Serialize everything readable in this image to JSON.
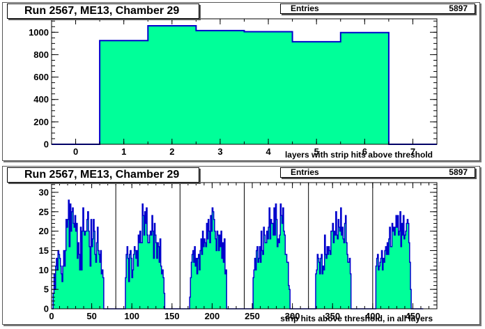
{
  "charts": [
    {
      "title": "Run 2567, ME13, Chamber 29",
      "stats": {
        "label": "Entries",
        "value": "5897"
      },
      "xlabel": "layers with strip hits above threshold"
    },
    {
      "title": "Run 2567, ME13, Chamber 29",
      "stats": {
        "label": "Entries",
        "value": "5897"
      },
      "xlabel": "strip hits above threshold, in all layers"
    }
  ],
  "colors": {
    "fill": "#00ff99",
    "line": "#0000cc",
    "frame": "#000000"
  },
  "chart_data": [
    {
      "type": "bar",
      "title": "Run 2567, ME13, Chamber 29",
      "xlabel": "layers with strip hits above threshold",
      "ylabel": "",
      "xlim": [
        -0.5,
        7.5
      ],
      "ylim": [
        0,
        1120
      ],
      "xticks": [
        0,
        1,
        2,
        3,
        4,
        5,
        6,
        7
      ],
      "yticks": [
        0,
        200,
        400,
        600,
        800,
        1000
      ],
      "categories": [
        0,
        1,
        2,
        3,
        4,
        5,
        6,
        7
      ],
      "values": [
        0,
        925,
        1058,
        1015,
        1005,
        915,
        997,
        0
      ],
      "entries": 5897
    },
    {
      "type": "bar",
      "title": "Run 2567, ME13, Chamber 29",
      "xlabel": "strip hits above threshold, in all layers",
      "ylabel": "",
      "xlim": [
        0,
        480
      ],
      "ylim": [
        0,
        32.5
      ],
      "xticks": [
        0,
        50,
        100,
        150,
        200,
        250,
        300,
        350,
        400,
        450
      ],
      "yticks": [
        0,
        5,
        10,
        15,
        20,
        25,
        30
      ],
      "layer_boundaries": [
        80,
        160,
        240,
        320,
        400
      ],
      "bin_width": 1,
      "values": [
        0,
        0,
        4,
        9,
        5,
        11,
        13,
        10,
        15,
        14,
        13,
        11,
        9,
        7,
        11,
        15,
        11,
        15,
        23,
        21,
        23,
        28,
        16,
        27,
        20,
        25,
        26,
        22,
        21,
        24,
        20,
        22,
        13,
        17,
        14,
        10,
        21,
        10,
        20,
        26,
        20,
        19,
        20,
        20,
        23,
        25,
        20,
        16,
        11,
        23,
        16,
        18,
        23,
        20,
        14,
        12,
        17,
        21,
        15,
        14,
        12,
        15,
        9,
        10,
        8,
        0,
        0,
        0,
        0,
        0,
        0,
        0,
        0,
        0,
        0,
        0,
        0,
        0,
        0,
        0,
        0,
        0,
        0,
        0,
        0,
        0,
        0,
        0,
        0,
        0,
        0,
        0,
        8,
        14,
        16,
        13,
        7,
        14,
        15,
        13,
        8,
        10,
        14,
        16,
        15,
        13,
        15,
        11,
        19,
        17,
        20,
        17,
        17,
        27,
        24,
        19,
        25,
        22,
        26,
        19,
        17,
        17,
        19,
        20,
        19,
        24,
        20,
        13,
        22,
        19,
        17,
        13,
        17,
        16,
        12,
        18,
        11,
        9,
        10,
        8,
        4,
        0,
        0,
        0,
        0,
        0,
        0,
        0,
        0,
        0,
        0,
        0,
        0,
        0,
        0,
        0,
        0,
        0,
        0,
        0,
        0,
        0,
        0,
        0,
        0,
        0,
        0,
        0,
        0,
        0,
        0,
        0,
        3,
        8,
        12,
        14,
        15,
        12,
        16,
        11,
        13,
        9,
        13,
        14,
        10,
        15,
        18,
        14,
        20,
        16,
        18,
        17,
        16,
        22,
        18,
        23,
        20,
        17,
        24,
        20,
        26,
        25,
        23,
        20,
        18,
        15,
        20,
        19,
        15,
        19,
        16,
        20,
        13,
        17,
        12,
        18,
        9,
        10,
        0,
        0,
        0,
        0,
        0,
        0,
        0,
        0,
        0,
        0,
        0,
        0,
        0,
        0,
        0,
        0,
        0,
        0,
        0,
        0,
        0,
        0,
        0,
        0,
        0,
        0,
        0,
        0,
        0,
        0,
        0,
        0,
        0,
        8,
        10,
        13,
        10,
        15,
        16,
        12,
        13,
        16,
        12,
        20,
        15,
        14,
        21,
        19,
        17,
        17,
        20,
        18,
        21,
        26,
        18,
        23,
        22,
        22,
        19,
        26,
        19,
        27,
        23,
        16,
        18,
        17,
        19,
        27,
        24,
        22,
        26,
        20,
        19,
        14,
        14,
        12,
        12,
        6,
        5,
        0,
        0,
        0,
        0,
        0,
        0,
        0,
        0,
        0,
        0,
        0,
        0,
        0,
        0,
        0,
        0,
        0,
        0,
        0,
        0,
        0,
        0,
        0,
        0,
        0,
        0,
        0,
        0,
        0,
        0,
        0,
        0,
        9,
        10,
        14,
        13,
        12,
        9,
        13,
        14,
        9,
        11,
        10,
        19,
        14,
        13,
        16,
        14,
        16,
        15,
        14,
        20,
        20,
        22,
        17,
        20,
        19,
        25,
        19,
        18,
        23,
        21,
        20,
        26,
        19,
        21,
        18,
        17,
        22,
        24,
        17,
        14,
        12,
        12,
        13,
        9,
        0,
        0,
        0,
        0,
        0,
        0,
        0,
        0,
        0,
        0,
        0,
        0,
        0,
        0,
        0,
        0,
        0,
        0,
        0,
        0,
        0,
        0,
        0,
        0,
        0,
        0,
        0,
        0,
        0,
        0,
        0,
        11,
        13,
        14,
        10,
        11,
        12,
        13,
        15,
        10,
        13,
        12,
        15,
        16,
        14,
        17,
        14,
        18,
        21,
        16,
        16,
        22,
        20,
        21,
        19,
        21,
        24,
        21,
        24,
        19,
        20,
        25,
        16,
        22,
        19,
        24,
        18,
        19,
        20,
        22,
        23,
        22,
        17,
        12,
        5,
        0,
        0,
        0,
        0,
        0,
        0,
        0,
        0,
        0,
        0,
        0,
        0,
        0,
        0,
        0
      ]
    }
  ]
}
